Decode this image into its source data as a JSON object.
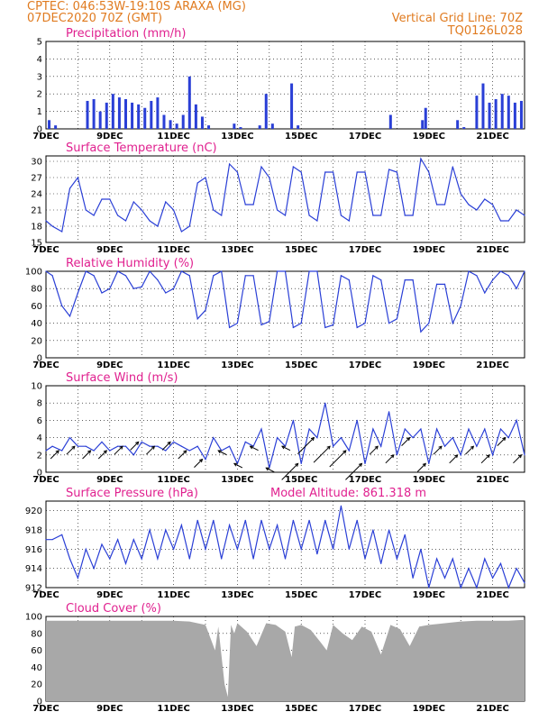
{
  "header": {
    "line1": "CPTEC:  046:53W-19:10S  ARAXA (MG)",
    "line2": "07DEC2020 70Z (GMT)",
    "right1": "Vertical Grid Line: 70Z",
    "right2": "TQ0126L028"
  },
  "colors": {
    "title": "#e0208f",
    "header": "#e07b20",
    "series": "#2a3fd6",
    "cloud": "#a8a8a8",
    "arrow": "#000000"
  },
  "x_axis": {
    "tick_labels": [
      "7DEC",
      "9DEC",
      "11DEC",
      "13DEC",
      "15DEC",
      "17DEC",
      "19DEC",
      "21DEC"
    ],
    "range_days": [
      7,
      22
    ],
    "vertical_gridlines": "daily"
  },
  "chart_data": [
    {
      "id": "precipitation",
      "type": "bar",
      "title": "Precipitation (mm/h)",
      "ylim": [
        0,
        5
      ],
      "yticks": [
        "0",
        "1",
        "2",
        "3",
        "4",
        "5"
      ],
      "series": [
        {
          "x": [
            7.1,
            7.3,
            8.3,
            8.5,
            8.7,
            8.9,
            9.1,
            9.3,
            9.5,
            9.7,
            9.9,
            10.1,
            10.3,
            10.5,
            10.7,
            10.9,
            11.1,
            11.3,
            11.5,
            11.7,
            11.9,
            12.1,
            12.9,
            13.1,
            13.7,
            13.9,
            14.1,
            14.7,
            14.9,
            17.8,
            18.8,
            18.9,
            19.9,
            20.1,
            20.5,
            20.7,
            20.9,
            21.1,
            21.3,
            21.5,
            21.7,
            21.9
          ],
          "values": [
            0.5,
            0.2,
            1.6,
            1.7,
            1.0,
            1.5,
            2.0,
            1.8,
            1.7,
            1.5,
            1.4,
            1.2,
            1.6,
            1.8,
            0.8,
            0.5,
            0.3,
            0.8,
            3.0,
            1.4,
            0.7,
            0.2,
            0.3,
            0.1,
            0.2,
            2.0,
            0.3,
            2.6,
            0.2,
            0.8,
            0.5,
            1.2,
            0.5,
            0.1,
            1.9,
            2.6,
            1.5,
            1.7,
            2.0,
            1.9,
            1.5,
            1.6
          ]
        }
      ]
    },
    {
      "id": "temperature",
      "type": "line",
      "title": "Surface Temperature (nC)",
      "ylim": [
        15,
        31
      ],
      "yticks": [
        "15",
        "18",
        "21",
        "24",
        "27",
        "30"
      ],
      "series": [
        {
          "x": [
            7.0,
            7.2,
            7.5,
            7.75,
            8.0,
            8.25,
            8.5,
            8.75,
            9.0,
            9.25,
            9.5,
            9.75,
            10.0,
            10.25,
            10.5,
            10.75,
            11.0,
            11.25,
            11.5,
            11.75,
            12.0,
            12.25,
            12.5,
            12.75,
            13.0,
            13.25,
            13.5,
            13.75,
            14.0,
            14.25,
            14.5,
            14.75,
            15.0,
            15.25,
            15.5,
            15.75,
            16.0,
            16.25,
            16.5,
            16.75,
            17.0,
            17.25,
            17.5,
            17.75,
            18.0,
            18.25,
            18.5,
            18.75,
            19.0,
            19.25,
            19.5,
            19.75,
            20.0,
            20.25,
            20.5,
            20.75,
            21.0,
            21.25,
            21.5,
            21.75,
            22.0
          ],
          "values": [
            19,
            18,
            17,
            25,
            27,
            21,
            20,
            23,
            23,
            20,
            19,
            22.5,
            21,
            19,
            18,
            22.5,
            21,
            17,
            18,
            26,
            27,
            21,
            20,
            29.5,
            28,
            22,
            22,
            29,
            27,
            21,
            20,
            29,
            28,
            20,
            19,
            28,
            28,
            20,
            19,
            28,
            28,
            20,
            20,
            28.5,
            28,
            20,
            20,
            30.5,
            28,
            22,
            22,
            29,
            24,
            22,
            21,
            23,
            22,
            19,
            19,
            21,
            20
          ]
        }
      ]
    },
    {
      "id": "humidity",
      "type": "line",
      "title": "Relative Humidity (%)",
      "ylim": [
        0,
        100
      ],
      "yticks": [
        "0",
        "20",
        "40",
        "60",
        "80",
        "100"
      ],
      "series": [
        {
          "x": [
            7.0,
            7.2,
            7.5,
            7.75,
            8.0,
            8.25,
            8.5,
            8.75,
            9.0,
            9.25,
            9.5,
            9.75,
            10.0,
            10.25,
            10.5,
            10.75,
            11.0,
            11.25,
            11.5,
            11.75,
            12.0,
            12.25,
            12.5,
            12.75,
            13.0,
            13.25,
            13.5,
            13.75,
            14.0,
            14.25,
            14.5,
            14.75,
            15.0,
            15.25,
            15.5,
            15.75,
            16.0,
            16.25,
            16.5,
            16.75,
            17.0,
            17.25,
            17.5,
            17.75,
            18.0,
            18.25,
            18.5,
            18.75,
            19.0,
            19.25,
            19.5,
            19.75,
            20.0,
            20.25,
            20.5,
            20.75,
            21.0,
            21.25,
            21.5,
            21.75,
            22.0
          ],
          "values": [
            100,
            95,
            60,
            48,
            75,
            100,
            95,
            75,
            80,
            100,
            95,
            80,
            82,
            100,
            90,
            75,
            80,
            100,
            95,
            45,
            55,
            95,
            100,
            35,
            40,
            95,
            95,
            38,
            42,
            100,
            100,
            35,
            40,
            100,
            100,
            35,
            38,
            95,
            90,
            35,
            40,
            95,
            90,
            40,
            45,
            90,
            90,
            30,
            40,
            85,
            85,
            40,
            60,
            100,
            95,
            75,
            90,
            100,
            95,
            80,
            100
          ]
        }
      ]
    },
    {
      "id": "wind",
      "type": "line",
      "title": "Surface Wind (m/s)",
      "ylim": [
        0,
        10
      ],
      "yticks": [
        "0",
        "2",
        "4",
        "6",
        "8",
        "10"
      ],
      "series": [
        {
          "x": [
            7.0,
            7.2,
            7.5,
            7.75,
            8.0,
            8.25,
            8.5,
            8.75,
            9.0,
            9.25,
            9.5,
            9.75,
            10.0,
            10.25,
            10.5,
            10.75,
            11.0,
            11.25,
            11.5,
            11.75,
            12.0,
            12.25,
            12.5,
            12.75,
            13.0,
            13.25,
            13.5,
            13.75,
            14.0,
            14.25,
            14.5,
            14.75,
            15.0,
            15.25,
            15.5,
            15.75,
            16.0,
            16.25,
            16.5,
            16.75,
            17.0,
            17.25,
            17.5,
            17.75,
            18.0,
            18.25,
            18.5,
            18.75,
            19.0,
            19.25,
            19.5,
            19.75,
            20.0,
            20.25,
            20.5,
            20.75,
            21.0,
            21.25,
            21.5,
            21.75,
            22.0
          ],
          "values": [
            2.5,
            3,
            2.5,
            4,
            3,
            3,
            2.5,
            3.5,
            2.5,
            3,
            3,
            2,
            3.5,
            3,
            3,
            2.5,
            3.5,
            3,
            2.5,
            3,
            1.5,
            4,
            2.5,
            3,
            1,
            3.5,
            3,
            5,
            0.5,
            4,
            3,
            6,
            1,
            5,
            4,
            8,
            3,
            4,
            2.5,
            6,
            1,
            5,
            3,
            7,
            2,
            5,
            4,
            5,
            1,
            5,
            3,
            4,
            2,
            5,
            3,
            5,
            2,
            5,
            4,
            6,
            2
          ]
        }
      ],
      "arrows": {
        "x": [
          7.4,
          7.9,
          8.4,
          8.9,
          9.4,
          9.9,
          10.4,
          10.9,
          11.4,
          11.9,
          12.4,
          12.9,
          13.4,
          13.9,
          14.4,
          14.9,
          15.4,
          15.9,
          16.4,
          16.9,
          17.4,
          17.9,
          18.4,
          18.9,
          19.4,
          19.9,
          20.4,
          20.9,
          21.4,
          21.9
        ],
        "u": [
          1,
          1,
          1,
          1,
          1,
          1,
          1,
          1,
          1,
          1,
          -1,
          -1,
          -1,
          -1,
          -1,
          2,
          2,
          2,
          2,
          2,
          1,
          1,
          1,
          1,
          1,
          1,
          1,
          1,
          1,
          1
        ],
        "v": [
          1,
          1,
          1,
          1,
          1,
          1,
          1,
          1,
          1,
          1,
          0.5,
          0.5,
          0.5,
          0.5,
          0.5,
          2,
          2,
          2,
          2,
          2,
          1,
          1,
          1,
          1,
          1,
          1,
          1,
          1,
          1,
          1
        ]
      }
    },
    {
      "id": "pressure",
      "type": "line",
      "title": "Surface Pressure (hPa)",
      "annotation": "Model Altitude: 861.318 m",
      "ylim": [
        912,
        921
      ],
      "yticks": [
        "912",
        "914",
        "916",
        "918",
        "920"
      ],
      "series": [
        {
          "x": [
            7.0,
            7.2,
            7.5,
            7.75,
            8.0,
            8.25,
            8.5,
            8.75,
            9.0,
            9.25,
            9.5,
            9.75,
            10.0,
            10.25,
            10.5,
            10.75,
            11.0,
            11.25,
            11.5,
            11.75,
            12.0,
            12.25,
            12.5,
            12.75,
            13.0,
            13.25,
            13.5,
            13.75,
            14.0,
            14.25,
            14.5,
            14.75,
            15.0,
            15.25,
            15.5,
            15.75,
            16.0,
            16.25,
            16.5,
            16.75,
            17.0,
            17.25,
            17.5,
            17.75,
            18.0,
            18.25,
            18.5,
            18.75,
            19.0,
            19.25,
            19.5,
            19.75,
            20.0,
            20.25,
            20.5,
            20.75,
            21.0,
            21.25,
            21.5,
            21.75,
            22.0
          ],
          "values": [
            917,
            917,
            917.5,
            915,
            913,
            916,
            914,
            916.5,
            915,
            917,
            914.5,
            917,
            915,
            918,
            915,
            918,
            916,
            918.5,
            915,
            919,
            916,
            919,
            915,
            918.5,
            916,
            919,
            915,
            919,
            916,
            918.5,
            915,
            919,
            916,
            919,
            915.5,
            919,
            916,
            920.5,
            916,
            919,
            915,
            918,
            914.5,
            918,
            915,
            917.5,
            913,
            916,
            912,
            915,
            913,
            915,
            912,
            914,
            912,
            915,
            913,
            914.5,
            912,
            914,
            912.5
          ]
        }
      ]
    },
    {
      "id": "cloud",
      "type": "area",
      "title": "Cloud Cover (%)",
      "ylim": [
        0,
        100
      ],
      "yticks": [
        "0",
        "20",
        "40",
        "60",
        "80",
        "100"
      ],
      "series": [
        {
          "x": [
            7.0,
            7.5,
            8.0,
            8.5,
            9.0,
            9.5,
            10.0,
            10.5,
            11.0,
            11.5,
            12.0,
            12.3,
            12.4,
            12.6,
            12.7,
            12.8,
            12.9,
            13.0,
            13.3,
            13.6,
            13.9,
            14.2,
            14.5,
            14.7,
            14.8,
            15.0,
            15.3,
            15.6,
            15.8,
            16.0,
            16.3,
            16.6,
            16.9,
            17.2,
            17.5,
            17.8,
            18.1,
            18.4,
            18.7,
            19.0,
            19.5,
            20.0,
            20.5,
            21.0,
            21.5,
            22.0
          ],
          "values": [
            95,
            95,
            95,
            95,
            95,
            95,
            95,
            95,
            95,
            94,
            90,
            60,
            88,
            20,
            5,
            90,
            80,
            92,
            82,
            65,
            92,
            90,
            82,
            52,
            88,
            90,
            84,
            70,
            60,
            90,
            80,
            72,
            88,
            82,
            55,
            90,
            85,
            65,
            88,
            90,
            92,
            94,
            95,
            95,
            95,
            96
          ]
        }
      ]
    }
  ]
}
